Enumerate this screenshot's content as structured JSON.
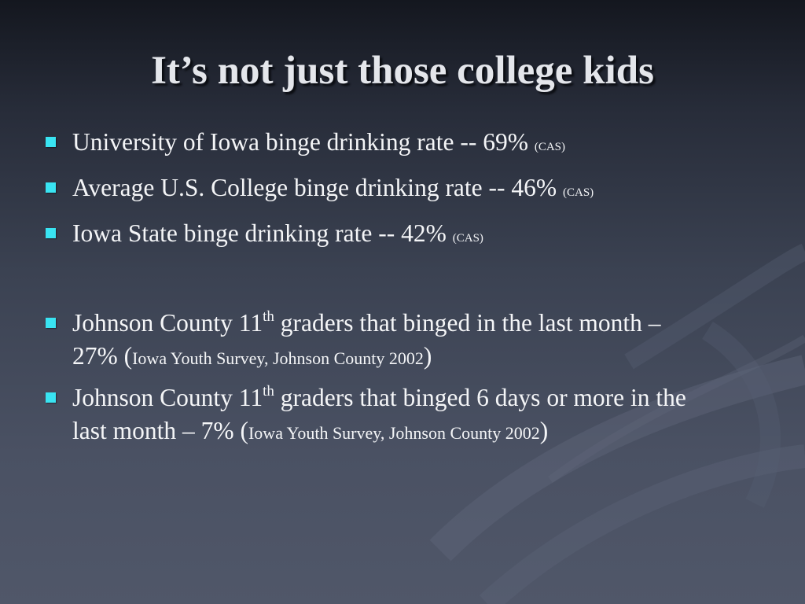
{
  "slide": {
    "title": "It’s not just those college kids",
    "group_1": [
      {
        "text": "University of Iowa binge drinking rate -- 69%",
        "cite": "(CAS)"
      },
      {
        "text": "Average U.S. College binge drinking rate -- 46%",
        "cite": "(CAS)"
      },
      {
        "text": "Iowa State binge drinking rate -- 42%",
        "cite": "(CAS)"
      }
    ],
    "group_2": [
      {
        "text_a": "Johnson County 11",
        "sup": "th",
        "text_b": " graders that binged in the last month – 27% (",
        "source": "Iowa Youth Survey, Johnson County 2002",
        "close": ")"
      },
      {
        "text_a": "Johnson County 11",
        "sup": "th",
        "text_b": " graders that binged 6 days or more in the  last month – 7% (",
        "source": "Iowa Youth Survey, Johnson County 2002",
        "close": ")"
      }
    ],
    "colors": {
      "background": "#3b4252",
      "bullet": "#39e4f2",
      "text": "#f4f5f7"
    }
  }
}
